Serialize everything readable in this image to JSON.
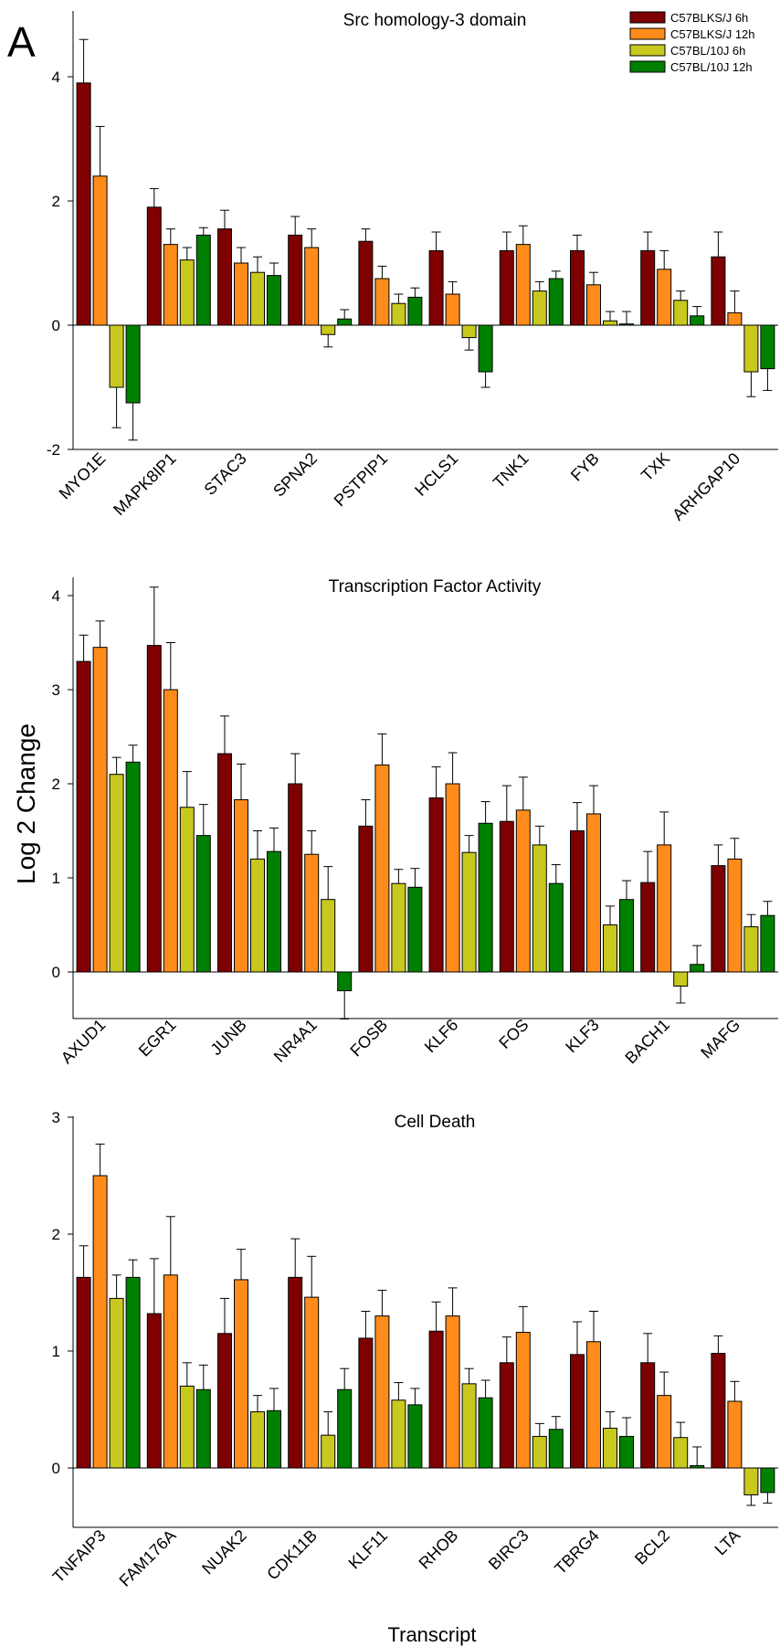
{
  "figure": {
    "panel_label": "A",
    "ylabel": "Log 2 Change",
    "xlabel": "Transcript",
    "legend": {
      "placement": "top-right",
      "entries": [
        {
          "name": "C57BLKS/J 6h",
          "color": "#7f0000"
        },
        {
          "name": "C57BLKS/J 12h",
          "color": "#ff8c1a"
        },
        {
          "name": "C57BL/10J 6h",
          "color": "#c8c81e"
        },
        {
          "name": "C57BL/10J 12h",
          "color": "#008000"
        }
      ]
    }
  },
  "chart_data": [
    {
      "type": "bar",
      "title": "Src homology-3 domain",
      "ylim": [
        -2,
        5
      ],
      "yticks": [
        -2,
        0,
        2,
        4
      ],
      "categories": [
        "MYO1E",
        "MAPK8IP1",
        "STAC3",
        "SPNA2",
        "PSTPIP1",
        "HCLS1",
        "TNK1",
        "FYB",
        "TXK",
        "ARHGAP10"
      ],
      "series": [
        {
          "name": "C57BLKS/J 6h",
          "values": [
            3.9,
            1.9,
            1.55,
            1.45,
            1.35,
            1.2,
            1.2,
            1.2,
            1.2,
            1.1
          ],
          "errors": [
            0.7,
            0.3,
            0.3,
            0.3,
            0.2,
            0.3,
            0.3,
            0.25,
            0.3,
            0.4
          ]
        },
        {
          "name": "C57BLKS/J 12h",
          "values": [
            2.4,
            1.3,
            1.0,
            1.25,
            0.75,
            0.5,
            1.3,
            0.65,
            0.9,
            0.2
          ],
          "errors": [
            0.8,
            0.25,
            0.25,
            0.3,
            0.2,
            0.2,
            0.3,
            0.2,
            0.3,
            0.35
          ]
        },
        {
          "name": "C57BL/10J 6h",
          "values": [
            -1.0,
            1.05,
            0.85,
            -0.15,
            0.35,
            -0.2,
            0.55,
            0.07,
            0.4,
            -0.75
          ],
          "errors": [
            0.65,
            0.2,
            0.25,
            0.2,
            0.15,
            0.2,
            0.15,
            0.15,
            0.15,
            0.4
          ]
        },
        {
          "name": "C57BL/10J 12h",
          "values": [
            -1.25,
            1.45,
            0.8,
            0.1,
            0.45,
            -0.75,
            0.75,
            0.02,
            0.15,
            -0.7
          ],
          "errors": [
            0.6,
            0.12,
            0.2,
            0.15,
            0.15,
            0.25,
            0.12,
            0.2,
            0.15,
            0.35
          ]
        }
      ]
    },
    {
      "type": "bar",
      "title": "Transcription Factor Activity",
      "ylim": [
        -0.5,
        4.2
      ],
      "yticks": [
        0,
        1,
        2,
        3,
        4
      ],
      "categories": [
        "AXUD1",
        "EGR1",
        "JUNB",
        "NR4A1",
        "FOSB",
        "KLF6",
        "FOS",
        "KLF3",
        "BACH1",
        "MAFG"
      ],
      "series": [
        {
          "name": "C57BLKS/J 6h",
          "values": [
            3.3,
            3.47,
            2.32,
            2.0,
            1.55,
            1.85,
            1.6,
            1.5,
            0.95,
            1.13
          ],
          "errors": [
            0.28,
            0.62,
            0.4,
            0.32,
            0.28,
            0.33,
            0.38,
            0.3,
            0.33,
            0.22
          ]
        },
        {
          "name": "C57BLKS/J 12h",
          "values": [
            3.45,
            3.0,
            1.83,
            1.25,
            2.2,
            2.0,
            1.72,
            1.68,
            1.35,
            1.2
          ],
          "errors": [
            0.28,
            0.5,
            0.38,
            0.25,
            0.33,
            0.33,
            0.35,
            0.3,
            0.35,
            0.22
          ]
        },
        {
          "name": "C57BL/10J 6h",
          "values": [
            2.1,
            1.75,
            1.2,
            0.77,
            0.94,
            1.27,
            1.35,
            0.5,
            -0.15,
            0.48
          ],
          "errors": [
            0.18,
            0.38,
            0.3,
            0.35,
            0.15,
            0.18,
            0.2,
            0.2,
            0.18,
            0.13
          ]
        },
        {
          "name": "C57BL/10J 12h",
          "values": [
            2.23,
            1.45,
            1.28,
            -0.2,
            0.9,
            1.58,
            0.94,
            0.77,
            0.08,
            0.6
          ],
          "errors": [
            0.18,
            0.33,
            0.25,
            0.3,
            0.2,
            0.23,
            0.2,
            0.2,
            0.2,
            0.15
          ]
        }
      ]
    },
    {
      "type": "bar",
      "title": "Cell Death",
      "ylim": [
        -0.5,
        3
      ],
      "yticks": [
        0,
        1,
        2,
        3
      ],
      "categories": [
        "TNFAIP3",
        "FAM176A",
        "NUAK2",
        "CDK11B",
        "KLF11",
        "RHOB",
        "BIRC3",
        "TBRG4",
        "BCL2",
        "LTA"
      ],
      "series": [
        {
          "name": "C57BLKS/J 6h",
          "values": [
            1.63,
            1.32,
            1.15,
            1.63,
            1.11,
            1.17,
            0.9,
            0.97,
            0.9,
            0.98
          ],
          "errors": [
            0.27,
            0.47,
            0.3,
            0.33,
            0.23,
            0.25,
            0.22,
            0.28,
            0.25,
            0.15
          ]
        },
        {
          "name": "C57BLKS/J 12h",
          "values": [
            2.5,
            1.65,
            1.61,
            1.46,
            1.3,
            1.3,
            1.16,
            1.08,
            0.62,
            0.57
          ],
          "errors": [
            0.27,
            0.5,
            0.26,
            0.35,
            0.22,
            0.24,
            0.22,
            0.26,
            0.2,
            0.17
          ]
        },
        {
          "name": "C57BL/10J 6h",
          "values": [
            1.45,
            0.7,
            0.48,
            0.28,
            0.58,
            0.72,
            0.27,
            0.34,
            0.26,
            -0.23
          ],
          "errors": [
            0.2,
            0.2,
            0.14,
            0.2,
            0.15,
            0.13,
            0.11,
            0.14,
            0.13,
            0.09
          ]
        },
        {
          "name": "C57BL/10J 12h",
          "values": [
            1.63,
            0.67,
            0.49,
            0.67,
            0.54,
            0.6,
            0.33,
            0.27,
            0.02,
            -0.21
          ],
          "errors": [
            0.15,
            0.21,
            0.19,
            0.18,
            0.14,
            0.15,
            0.11,
            0.16,
            0.16,
            0.09
          ]
        }
      ]
    }
  ]
}
